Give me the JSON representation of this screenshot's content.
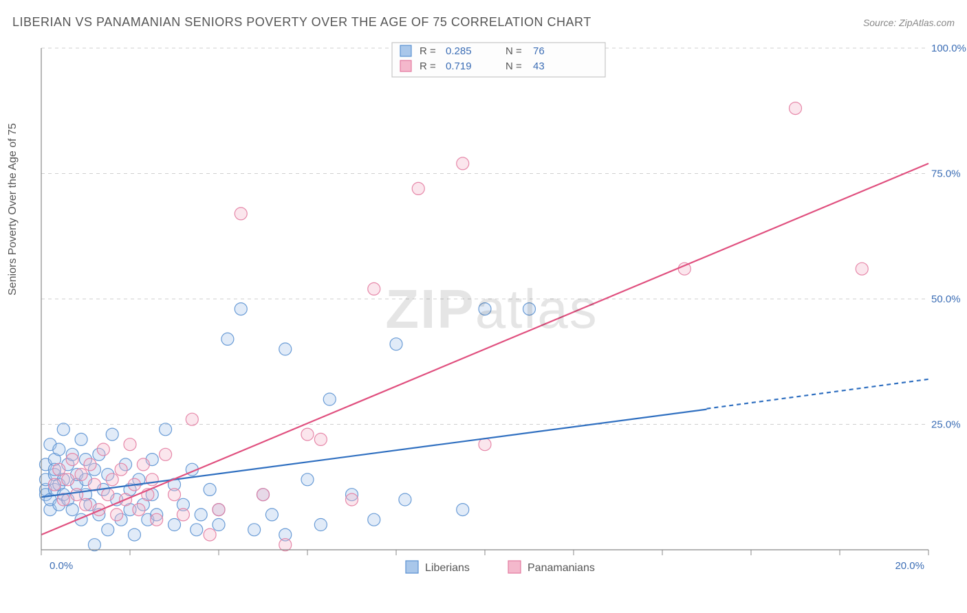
{
  "title": "LIBERIAN VS PANAMANIAN SENIORS POVERTY OVER THE AGE OF 75 CORRELATION CHART",
  "source_prefix": "Source: ",
  "source_name": "ZipAtlas.com",
  "y_axis_label": "Seniors Poverty Over the Age of 75",
  "watermark": {
    "bold": "ZIP",
    "rest": "atlas"
  },
  "chart": {
    "type": "scatter-with-regression",
    "background_color": "#ffffff",
    "xlim": [
      0,
      20
    ],
    "ylim": [
      0,
      100
    ],
    "x_ticks": [
      0,
      2,
      4,
      6,
      8,
      10,
      12,
      14,
      16,
      18,
      20
    ],
    "x_tick_labels": {
      "0": "0.0%",
      "20": "20.0%"
    },
    "y_ticks": [
      25,
      50,
      75,
      100
    ],
    "y_tick_labels": {
      "25": "25.0%",
      "50": "50.0%",
      "75": "75.0%",
      "100": "100.0%"
    },
    "grid_color": "#cfcfcf",
    "axis_color": "#888888",
    "marker_radius": 9,
    "marker_fill_opacity": 0.35,
    "marker_stroke_opacity": 0.9,
    "marker_stroke_width": 1.2,
    "series": [
      {
        "name": "Liberians",
        "color_stroke": "#5a91d1",
        "color_fill": "#a9c7ea",
        "line_color": "#2f6fc0",
        "line_width": 2.2,
        "r_value": "0.285",
        "n_value": "76",
        "regression": {
          "x1": 0,
          "y1": 10.5,
          "x2": 15,
          "y2": 28,
          "dash_after_x": 15,
          "x2d": 20,
          "y2d": 34
        },
        "points": [
          [
            0.1,
            17
          ],
          [
            0.1,
            12
          ],
          [
            0.1,
            11
          ],
          [
            0.1,
            14
          ],
          [
            0.2,
            21
          ],
          [
            0.2,
            8
          ],
          [
            0.2,
            10
          ],
          [
            0.3,
            15
          ],
          [
            0.3,
            18
          ],
          [
            0.3,
            12
          ],
          [
            0.3,
            16
          ],
          [
            0.4,
            20
          ],
          [
            0.4,
            9
          ],
          [
            0.4,
            13
          ],
          [
            0.5,
            24
          ],
          [
            0.5,
            11
          ],
          [
            0.5,
            14
          ],
          [
            0.6,
            17
          ],
          [
            0.6,
            10
          ],
          [
            0.7,
            8
          ],
          [
            0.7,
            19
          ],
          [
            0.8,
            13
          ],
          [
            0.8,
            15
          ],
          [
            0.9,
            22
          ],
          [
            0.9,
            6
          ],
          [
            1.0,
            18
          ],
          [
            1.0,
            11
          ],
          [
            1.0,
            14
          ],
          [
            1.1,
            9
          ],
          [
            1.2,
            16
          ],
          [
            1.2,
            1
          ],
          [
            1.3,
            19
          ],
          [
            1.3,
            7
          ],
          [
            1.4,
            12
          ],
          [
            1.5,
            15
          ],
          [
            1.5,
            4
          ],
          [
            1.6,
            23
          ],
          [
            1.7,
            10
          ],
          [
            1.8,
            6
          ],
          [
            1.9,
            17
          ],
          [
            2.0,
            12
          ],
          [
            2.0,
            8
          ],
          [
            2.1,
            3
          ],
          [
            2.2,
            14
          ],
          [
            2.3,
            9
          ],
          [
            2.4,
            6
          ],
          [
            2.5,
            11
          ],
          [
            2.5,
            18
          ],
          [
            2.6,
            7
          ],
          [
            2.8,
            24
          ],
          [
            3.0,
            5
          ],
          [
            3.0,
            13
          ],
          [
            3.2,
            9
          ],
          [
            3.4,
            16
          ],
          [
            3.5,
            4
          ],
          [
            3.6,
            7
          ],
          [
            3.8,
            12
          ],
          [
            4.0,
            5
          ],
          [
            4.0,
            8
          ],
          [
            4.2,
            42
          ],
          [
            4.5,
            48
          ],
          [
            4.8,
            4
          ],
          [
            5.0,
            11
          ],
          [
            5.2,
            7
          ],
          [
            5.5,
            40
          ],
          [
            5.5,
            3
          ],
          [
            6.0,
            14
          ],
          [
            6.3,
            5
          ],
          [
            6.5,
            30
          ],
          [
            7.0,
            11
          ],
          [
            7.5,
            6
          ],
          [
            8.0,
            41
          ],
          [
            8.2,
            10
          ],
          [
            9.5,
            8
          ],
          [
            10.0,
            48
          ],
          [
            11.0,
            48
          ]
        ]
      },
      {
        "name": "Panamanians",
        "color_stroke": "#e37ba0",
        "color_fill": "#f4b8cc",
        "line_color": "#e0507f",
        "line_width": 2.2,
        "r_value": "0.719",
        "n_value": "43",
        "regression": {
          "x1": 0,
          "y1": 3,
          "x2": 20,
          "y2": 77,
          "dash_after_x": 20,
          "x2d": 20,
          "y2d": 77
        },
        "points": [
          [
            0.3,
            13
          ],
          [
            0.4,
            16
          ],
          [
            0.5,
            10
          ],
          [
            0.6,
            14
          ],
          [
            0.7,
            18
          ],
          [
            0.8,
            11
          ],
          [
            0.9,
            15
          ],
          [
            1.0,
            9
          ],
          [
            1.1,
            17
          ],
          [
            1.2,
            13
          ],
          [
            1.3,
            8
          ],
          [
            1.4,
            20
          ],
          [
            1.5,
            11
          ],
          [
            1.6,
            14
          ],
          [
            1.7,
            7
          ],
          [
            1.8,
            16
          ],
          [
            1.9,
            10
          ],
          [
            2.0,
            21
          ],
          [
            2.1,
            13
          ],
          [
            2.2,
            8
          ],
          [
            2.3,
            17
          ],
          [
            2.4,
            11
          ],
          [
            2.5,
            14
          ],
          [
            2.6,
            6
          ],
          [
            2.8,
            19
          ],
          [
            3.0,
            11
          ],
          [
            3.2,
            7
          ],
          [
            3.4,
            26
          ],
          [
            3.8,
            3
          ],
          [
            4.0,
            8
          ],
          [
            4.5,
            67
          ],
          [
            5.0,
            11
          ],
          [
            5.5,
            1
          ],
          [
            6.0,
            23
          ],
          [
            6.3,
            22
          ],
          [
            7.0,
            10
          ],
          [
            7.5,
            52
          ],
          [
            8.5,
            72
          ],
          [
            9.5,
            77
          ],
          [
            10.0,
            21
          ],
          [
            14.5,
            56
          ],
          [
            17.0,
            88
          ],
          [
            18.5,
            56
          ]
        ]
      }
    ]
  },
  "top_legend": {
    "r_label": "R =",
    "n_label": "N ="
  },
  "bottom_legend": {
    "items": [
      "Liberians",
      "Panamanians"
    ]
  }
}
